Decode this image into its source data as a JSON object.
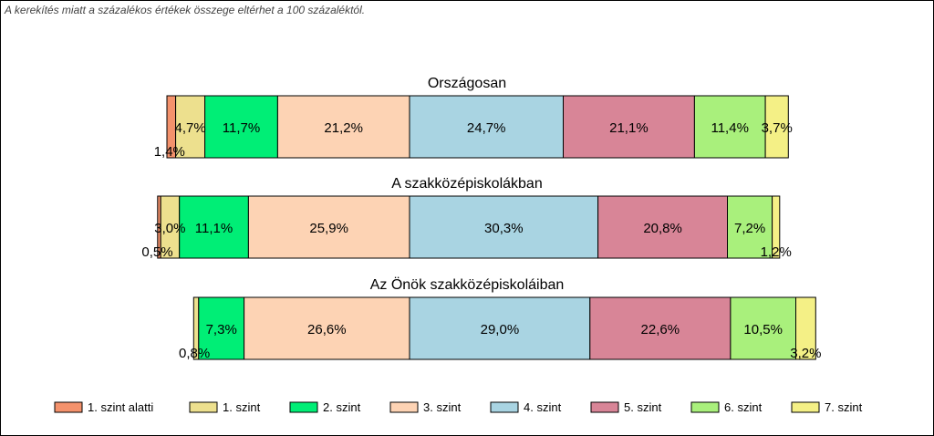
{
  "note": "A kerekítés miatt a  százalékos értékek összege eltérhet a 100 százaléktól.",
  "chart_data": {
    "type": "bar",
    "orientation": "horizontal",
    "stacked": true,
    "legend_position": "bottom",
    "series_names": [
      "1. szint alatti",
      "1. szint",
      "2. szint",
      "3. szint",
      "4. szint",
      "5. szint",
      "6. szint",
      "7. szint"
    ],
    "colors": [
      "#f4926c",
      "#ede08e",
      "#00ee76",
      "#fdd3b4",
      "#a9d4e2",
      "#d88597",
      "#a9f07c",
      "#f4f086"
    ],
    "bars": [
      {
        "title": "Országosan",
        "values": [
          1.4,
          4.7,
          11.7,
          21.2,
          24.7,
          21.1,
          11.4,
          3.7
        ],
        "labels": [
          "1,4%",
          "4,7%",
          "11,7%",
          "21,2%",
          "24,7%",
          "21,1%",
          "11,4%",
          "3,7%"
        ]
      },
      {
        "title": "A szakközépiskolákban",
        "values": [
          0.5,
          3.0,
          11.1,
          25.9,
          30.3,
          20.8,
          7.2,
          1.2
        ],
        "labels": [
          "0,5%",
          "3,0%",
          "11,1%",
          "25,9%",
          "30,3%",
          "20,8%",
          "7,2%",
          "1,2%"
        ]
      },
      {
        "title": "Az Önök szakközépiskoláiban",
        "values": [
          0.0,
          0.8,
          7.3,
          26.6,
          29.0,
          22.6,
          10.5,
          3.2
        ],
        "labels": [
          "",
          "0,8%",
          "7,3%",
          "26,6%",
          "29,0%",
          "22,6%",
          "10,5%",
          "3,2%"
        ]
      }
    ]
  }
}
